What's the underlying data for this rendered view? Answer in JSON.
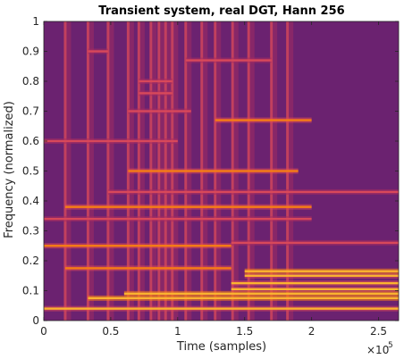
{
  "chart_data": {
    "type": "heatmap",
    "title": "Transient system, real DGT, Hann 256",
    "xlabel": "Time (samples)",
    "ylabel": "Frequency (normalized)",
    "xlim": [
      0,
      265000
    ],
    "ylim": [
      0,
      1
    ],
    "x_ticks": [
      0,
      50000,
      100000,
      150000,
      200000,
      250000
    ],
    "x_tick_labels": [
      "0",
      "0.5",
      "1",
      "1.5",
      "2",
      "2.5"
    ],
    "x_exponent_label": "×10",
    "x_exponent_power": "5",
    "y_ticks": [
      0,
      0.1,
      0.2,
      0.3,
      0.4,
      0.5,
      0.6,
      0.7,
      0.8,
      0.9,
      1
    ],
    "y_tick_labels": [
      "0",
      "0.1",
      "0.2",
      "0.3",
      "0.4",
      "0.5",
      "0.6",
      "0.7",
      "0.8",
      "0.9",
      "1"
    ],
    "colormap": [
      "#3b0f6f",
      "#6a1c6e",
      "#a52c60",
      "#d8485a",
      "#f57d15",
      "#fbb32f",
      "#fce38a"
    ],
    "background_color": "#6b2270",
    "onsets": [
      16000,
      33000,
      48000,
      63000,
      71000,
      80000,
      86000,
      91000,
      96000,
      106000,
      118000,
      128000,
      141000,
      153000,
      170000,
      182000
    ],
    "harmonics": [
      {
        "f": 0.04,
        "start": 0,
        "end": 265000,
        "level": 0.75
      },
      {
        "f": 0.075,
        "start": 33000,
        "end": 265000,
        "level": 0.9
      },
      {
        "f": 0.09,
        "start": 60000,
        "end": 265000,
        "level": 0.85
      },
      {
        "f": 0.105,
        "start": 140000,
        "end": 265000,
        "level": 0.8
      },
      {
        "f": 0.125,
        "start": 140000,
        "end": 265000,
        "level": 0.75
      },
      {
        "f": 0.15,
        "start": 150000,
        "end": 265000,
        "level": 0.8
      },
      {
        "f": 0.165,
        "start": 150000,
        "end": 265000,
        "level": 0.85
      },
      {
        "f": 0.175,
        "start": 16000,
        "end": 140000,
        "level": 0.7
      },
      {
        "f": 0.25,
        "start": 0,
        "end": 140000,
        "level": 0.65
      },
      {
        "f": 0.26,
        "start": 140000,
        "end": 265000,
        "level": 0.55
      },
      {
        "f": 0.34,
        "start": 0,
        "end": 200000,
        "level": 0.55
      },
      {
        "f": 0.38,
        "start": 16000,
        "end": 200000,
        "level": 0.7
      },
      {
        "f": 0.43,
        "start": 48000,
        "end": 265000,
        "level": 0.55
      },
      {
        "f": 0.5,
        "start": 63000,
        "end": 190000,
        "level": 0.6
      },
      {
        "f": 0.6,
        "start": 0,
        "end": 100000,
        "level": 0.5
      },
      {
        "f": 0.67,
        "start": 128000,
        "end": 200000,
        "level": 0.65
      },
      {
        "f": 0.7,
        "start": 63000,
        "end": 110000,
        "level": 0.55
      },
      {
        "f": 0.76,
        "start": 71000,
        "end": 96000,
        "level": 0.5
      },
      {
        "f": 0.8,
        "start": 71000,
        "end": 96000,
        "level": 0.5
      },
      {
        "f": 0.87,
        "start": 106000,
        "end": 170000,
        "level": 0.45
      },
      {
        "f": 0.9,
        "start": 33000,
        "end": 48000,
        "level": 0.45
      }
    ]
  }
}
